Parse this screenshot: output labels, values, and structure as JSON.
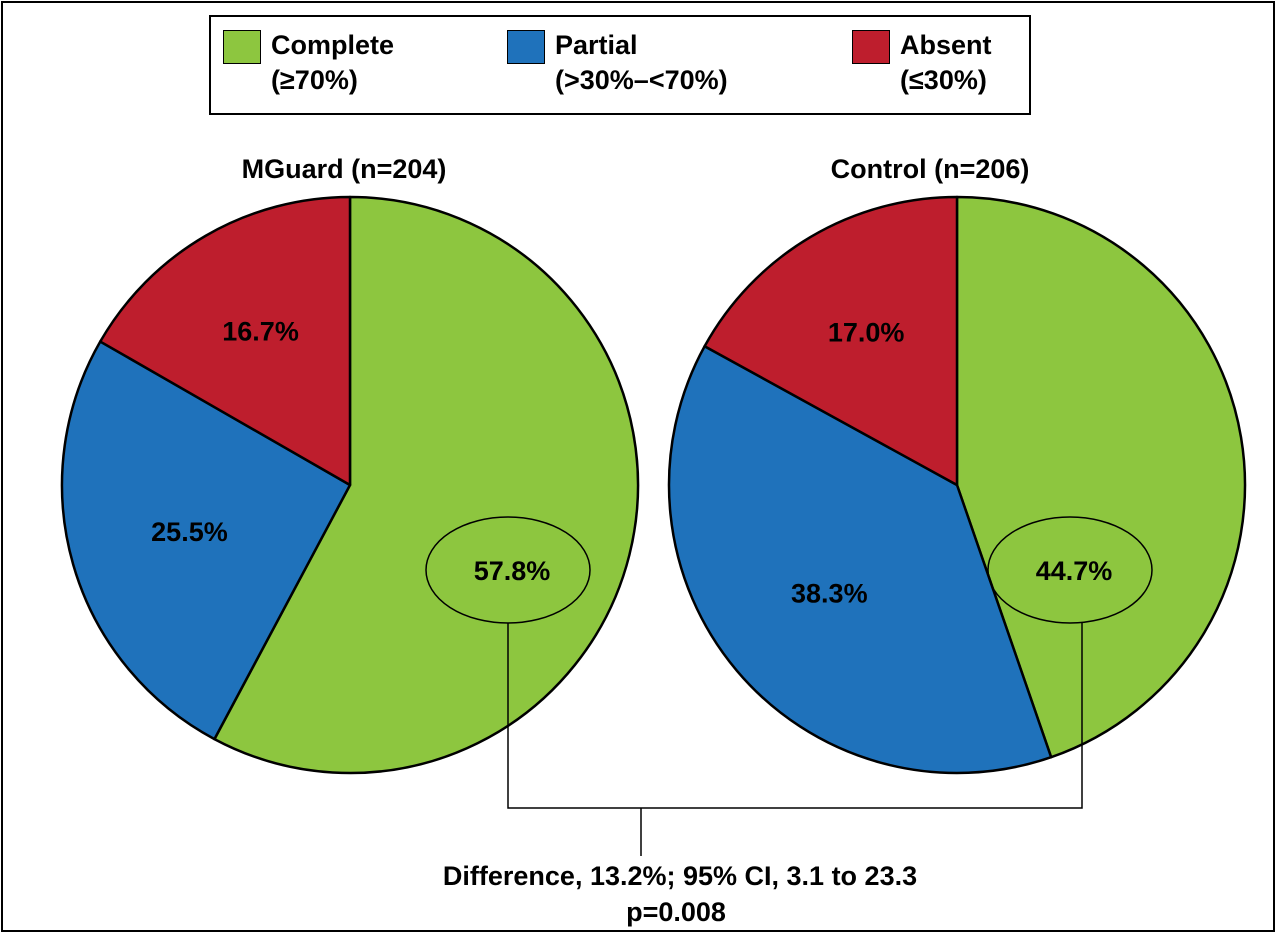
{
  "colors": {
    "complete": "#8dc63f",
    "partial": "#1f72bb",
    "absent": "#be1e2d"
  },
  "legend": [
    {
      "key": "complete",
      "label": "Complete",
      "sublabel": "(≥70%)"
    },
    {
      "key": "partial",
      "label": "Partial",
      "sublabel": "(>30%–<70%)"
    },
    {
      "key": "absent",
      "label": "Absent",
      "sublabel": "(≤30%)"
    }
  ],
  "chart_data": [
    {
      "type": "pie",
      "title": "MGuard (n=204)",
      "slices": [
        {
          "key": "complete",
          "name": "Complete",
          "value": 57.8,
          "label": "57.8%"
        },
        {
          "key": "partial",
          "name": "Partial",
          "value": 25.5,
          "label": "25.5%"
        },
        {
          "key": "absent",
          "name": "Absent",
          "value": 16.7,
          "label": "16.7%"
        }
      ]
    },
    {
      "type": "pie",
      "title": "Control (n=206)",
      "slices": [
        {
          "key": "complete",
          "name": "Complete",
          "value": 44.7,
          "label": "44.7%"
        },
        {
          "key": "partial",
          "name": "Partial",
          "value": 38.3,
          "label": "38.3%"
        },
        {
          "key": "absent",
          "name": "Absent",
          "value": 17.0,
          "label": "17.0%"
        }
      ]
    }
  ],
  "annotation": {
    "line1": "Difference, 13.2%; 95% CI, 3.1 to 23.3",
    "line2": "p=0.008"
  }
}
